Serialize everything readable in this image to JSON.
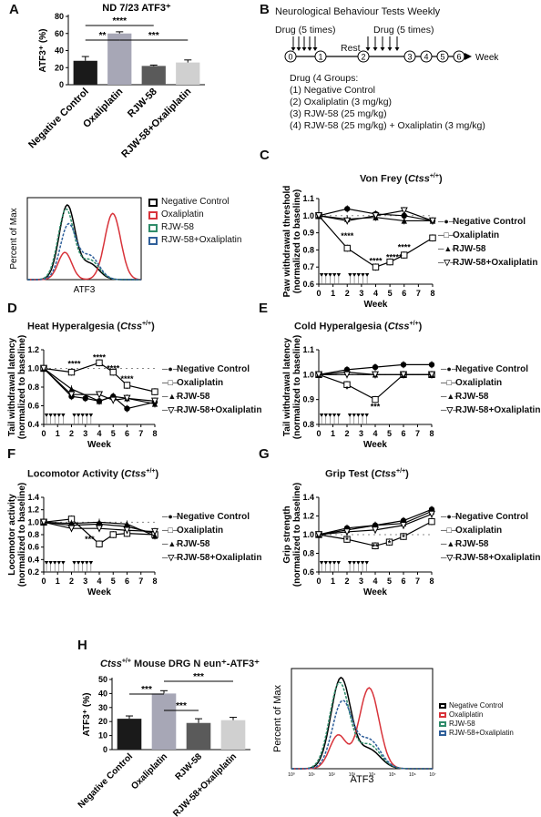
{
  "panels": {
    "a": "A",
    "b": "B",
    "c": "C",
    "d": "D",
    "e": "E",
    "f": "F",
    "g": "G",
    "h": "H"
  },
  "colors": {
    "black": "#000000",
    "red": "#d8333a",
    "green": "#2f8c6a",
    "blue": "#2f5f9a",
    "bar_black": "#1a1a1a",
    "bar_gray": "#a7a7b6",
    "bar_dark": "#5a5a5a",
    "bar_light": "#d0d0d0"
  },
  "groups": [
    "Negative Control",
    "Oxaliplatin",
    "RJW-58",
    "RJW-58+Oxaliplatin"
  ],
  "flow_legend": [
    "Negative Control",
    "Oxaliplatin",
    "RJW-58",
    "RJW-58+Oxaliplatin"
  ],
  "flow_xlabel": "ATF3",
  "flow_ylabel": "Percent of Max",
  "flow_ticks": [
    "10⁰",
    "10¹",
    "10²",
    "10³",
    "10⁴",
    "10⁵",
    "10⁶",
    "10⁷"
  ],
  "week_label": "Week",
  "sig": {
    "two": "**",
    "three": "***",
    "four": "****",
    "one": "*"
  },
  "panelA": {
    "title": "ND 7/23 ATF3⁺",
    "ylabel": "ATF3⁺ (%)"
  },
  "panelH": {
    "title_pre": "Ctss",
    "title_sup": "+/+",
    "title_post": " Mouse DRG N eun⁺-ATF3⁺",
    "ylabel": "ATF3⁺ (%)"
  },
  "panelB": {
    "title": "Neurological Behaviour Tests Weekly",
    "drug1": "Drug (5 times)",
    "drug2": "Drug (5 times)",
    "rest": "Rest",
    "axis": "Week",
    "weeks": [
      "0",
      "1",
      "2",
      "3",
      "4",
      "5",
      "6"
    ],
    "lines": [
      "Drug (4 Groups:",
      "(1) Negative Control",
      "(2) Oxaliplatin (3 mg/kg)",
      "(3) RJW-58 (25 mg/kg)",
      "(4) RJW-58 (25 mg/kg) + Oxaliplatin (3 mg/kg)"
    ]
  },
  "line_titles": {
    "c": {
      "pre": "Von Frey (",
      "it": "Ctss",
      "sup": "+/+",
      "post": ")"
    },
    "d": {
      "pre": "Heat Hyperalgesia (",
      "it": "Ctss",
      "sup": "+/+",
      "post": ")"
    },
    "e": {
      "pre": "Cold Hyperalgesia (",
      "it": "Ctss",
      "sup": "+/+",
      "post": ")"
    },
    "f": {
      "pre": "Locomotor Activity (",
      "it": "Ctss",
      "sup": "+/+",
      "post": ")"
    },
    "g": {
      "pre": "Grip Test (",
      "it": "Ctss",
      "sup": "+/+",
      "post": ")"
    }
  },
  "chart_data": [
    {
      "id": "A",
      "type": "bar",
      "title": "ND 7/23 ATF3⁺",
      "ylabel": "ATF3⁺ (%)",
      "ylim": [
        0,
        80
      ],
      "yticks": [
        0,
        20,
        40,
        60,
        80
      ],
      "categories": [
        "Negative Control",
        "Oxaliplatin",
        "RJW-58",
        "RJW-58+Oxaliplatin"
      ],
      "values": [
        28,
        60,
        22,
        26
      ],
      "errors": [
        5,
        2,
        1,
        3
      ],
      "significance": [
        {
          "from": 0,
          "to": 1,
          "label": "**"
        },
        {
          "from": 0,
          "to": 2,
          "label": "****"
        },
        {
          "from": 1,
          "to": 3,
          "label": "***"
        }
      ]
    },
    {
      "id": "C",
      "type": "line",
      "title": "Von Frey (Ctss+/+)",
      "ylabel": "Paw withdrawal threshold (normalized to baseline)",
      "xlabel": "Week",
      "x": [
        0,
        1,
        2,
        3,
        4,
        5,
        6,
        7,
        8
      ],
      "ylim": [
        0.6,
        1.1
      ],
      "yticks": [
        0.6,
        0.7,
        0.8,
        0.9,
        1.0,
        1.1
      ],
      "series": [
        {
          "name": "Negative Control",
          "marker": "circle-filled",
          "x": [
            0,
            2,
            4,
            6,
            8
          ],
          "y": [
            1.0,
            1.04,
            1.01,
            1.0,
            0.97
          ]
        },
        {
          "name": "Oxaliplatin",
          "marker": "square-open",
          "x": [
            0,
            2,
            4,
            5,
            6,
            8
          ],
          "y": [
            1.0,
            0.81,
            0.7,
            0.73,
            0.77,
            0.87
          ]
        },
        {
          "name": "RJW-58",
          "marker": "triangle-filled",
          "x": [
            0,
            2,
            4,
            6,
            8
          ],
          "y": [
            1.0,
            0.98,
            0.99,
            0.97,
            0.97
          ]
        },
        {
          "name": "RJW-58+Oxaliplatin",
          "marker": "triangle-open",
          "x": [
            0,
            2,
            4,
            6,
            8
          ],
          "y": [
            1.0,
            0.97,
            1.0,
            1.03,
            0.97
          ]
        }
      ],
      "annotations": [
        "****",
        "****",
        "*****",
        "****"
      ]
    },
    {
      "id": "D",
      "type": "line",
      "title": "Heat Hyperalgesia (Ctss+/+)",
      "ylabel": "Tail withdrawal latency (normalized to baseline)",
      "xlabel": "Week",
      "x": [
        0,
        1,
        2,
        3,
        4,
        5,
        6,
        7,
        8
      ],
      "ylim": [
        0.4,
        1.2
      ],
      "yticks": [
        0.4,
        0.6,
        0.8,
        1.0,
        1.2
      ],
      "series": [
        {
          "name": "Negative Control",
          "marker": "circle-filled",
          "x": [
            0,
            2,
            3,
            4,
            5,
            6,
            8
          ],
          "y": [
            1.0,
            0.7,
            0.68,
            0.65,
            0.7,
            0.57,
            0.64
          ]
        },
        {
          "name": "Oxaliplatin",
          "marker": "square-open",
          "x": [
            0,
            2,
            4,
            5,
            6,
            8
          ],
          "y": [
            1.0,
            0.96,
            1.06,
            0.96,
            0.82,
            0.75
          ]
        },
        {
          "name": "RJW-58",
          "marker": "triangle-filled",
          "x": [
            0,
            2,
            4,
            5,
            6,
            8
          ],
          "y": [
            1.0,
            0.78,
            0.65,
            0.7,
            0.68,
            0.62
          ]
        },
        {
          "name": "RJW-58+Oxaliplatin",
          "marker": "triangle-open",
          "x": [
            0,
            2,
            4,
            5,
            6,
            8
          ],
          "y": [
            1.0,
            0.72,
            0.72,
            0.66,
            0.68,
            0.65
          ]
        }
      ],
      "annotations": [
        "****",
        "****",
        "****",
        "****"
      ]
    },
    {
      "id": "E",
      "type": "line",
      "title": "Cold Hyperalgesia (Ctss+/+)",
      "ylabel": "Tail withdrawal latency (normalized to baseline)",
      "xlabel": "Week",
      "x": [
        0,
        1,
        2,
        3,
        4,
        5,
        6,
        7,
        8
      ],
      "ylim": [
        0.8,
        1.1
      ],
      "yticks": [
        0.8,
        0.9,
        1.0,
        1.1
      ],
      "series": [
        {
          "name": "Negative Control",
          "marker": "circle-filled",
          "x": [
            0,
            2,
            4,
            6,
            8
          ],
          "y": [
            1.0,
            1.02,
            1.03,
            1.04,
            1.04
          ]
        },
        {
          "name": "Oxaliplatin",
          "marker": "square-open",
          "x": [
            0,
            2,
            4,
            6,
            8
          ],
          "y": [
            1.0,
            0.96,
            0.9,
            1.0,
            1.0
          ]
        },
        {
          "name": "RJW-58",
          "marker": "triangle-filled",
          "x": [
            0,
            2,
            4,
            6,
            8
          ],
          "y": [
            1.0,
            1.01,
            1.0,
            1.0,
            1.0
          ]
        },
        {
          "name": "RJW-58+Oxaliplatin",
          "marker": "triangle-open",
          "x": [
            0,
            2,
            4,
            6,
            8
          ],
          "y": [
            1.0,
            1.0,
            1.0,
            1.0,
            1.0
          ]
        }
      ],
      "annotations": [
        "*",
        "***"
      ]
    },
    {
      "id": "F",
      "type": "line",
      "title": "Locomotor Activity (Ctss+/+)",
      "ylabel": "Locomotor activity (normalized to baseline)",
      "xlabel": "Week",
      "x": [
        0,
        1,
        2,
        3,
        4,
        5,
        6,
        7,
        8
      ],
      "ylim": [
        0.2,
        1.4
      ],
      "yticks": [
        0.2,
        0.4,
        0.6,
        0.8,
        1.0,
        1.2,
        1.4
      ],
      "series": [
        {
          "name": "Negative Control",
          "marker": "circle-filled",
          "x": [
            0,
            2,
            4,
            6,
            8
          ],
          "y": [
            1.0,
            0.95,
            0.97,
            0.93,
            0.82
          ]
        },
        {
          "name": "Oxaliplatin",
          "marker": "square-open",
          "x": [
            0,
            2,
            4,
            5,
            6,
            8
          ],
          "y": [
            1.0,
            1.05,
            0.65,
            0.8,
            0.82,
            0.8
          ]
        },
        {
          "name": "RJW-58",
          "marker": "triangle-filled",
          "x": [
            0,
            2,
            4,
            6,
            8
          ],
          "y": [
            1.0,
            0.98,
            1.0,
            0.97,
            0.78
          ]
        },
        {
          "name": "RJW-58+Oxaliplatin",
          "marker": "triangle-open",
          "x": [
            0,
            2,
            4,
            6,
            8
          ],
          "y": [
            1.0,
            0.9,
            0.9,
            0.87,
            0.85
          ]
        }
      ],
      "annotations": [
        "***"
      ]
    },
    {
      "id": "G",
      "type": "line",
      "title": "Grip Test (Ctss+/+)",
      "ylabel": "Grip strength (normalized to baseline)",
      "xlabel": "Week",
      "x": [
        0,
        1,
        2,
        3,
        4,
        5,
        6,
        7,
        8
      ],
      "ylim": [
        0.6,
        1.4
      ],
      "yticks": [
        0.6,
        0.8,
        1.0,
        1.2,
        1.4
      ],
      "series": [
        {
          "name": "Negative Control",
          "marker": "circle-filled",
          "x": [
            0,
            2,
            4,
            6,
            8
          ],
          "y": [
            1.0,
            1.07,
            1.1,
            1.15,
            1.27
          ]
        },
        {
          "name": "Oxaliplatin",
          "marker": "square-open",
          "x": [
            0,
            2,
            4,
            5,
            6,
            8
          ],
          "y": [
            1.0,
            0.95,
            0.88,
            0.92,
            0.98,
            1.14
          ]
        },
        {
          "name": "RJW-58",
          "marker": "triangle-filled",
          "x": [
            0,
            2,
            4,
            6,
            8
          ],
          "y": [
            1.0,
            1.05,
            1.1,
            1.12,
            1.25
          ]
        },
        {
          "name": "RJW-58+Oxaliplatin",
          "marker": "triangle-open",
          "x": [
            0,
            2,
            4,
            6,
            8
          ],
          "y": [
            1.0,
            1.03,
            1.05,
            1.1,
            1.22
          ]
        }
      ],
      "annotations": [
        "*",
        "**",
        "*",
        "*"
      ]
    },
    {
      "id": "H",
      "type": "bar",
      "title": "Ctss+/+ Mouse DRG N eun⁺-ATF3⁺",
      "ylabel": "ATF3⁺ (%)",
      "ylim": [
        0,
        50
      ],
      "yticks": [
        0,
        10,
        20,
        30,
        40,
        50
      ],
      "categories": [
        "Negative Control",
        "Oxaliplatin",
        "RJW-58",
        "RJW-58+Oxaliplatin"
      ],
      "values": [
        22,
        40,
        19,
        21
      ],
      "errors": [
        2,
        2,
        3,
        2
      ],
      "significance": [
        {
          "from": 0,
          "to": 1,
          "label": "***"
        },
        {
          "from": 1,
          "to": 2,
          "label": "***"
        },
        {
          "from": 1,
          "to": 3,
          "label": "***"
        }
      ]
    }
  ]
}
